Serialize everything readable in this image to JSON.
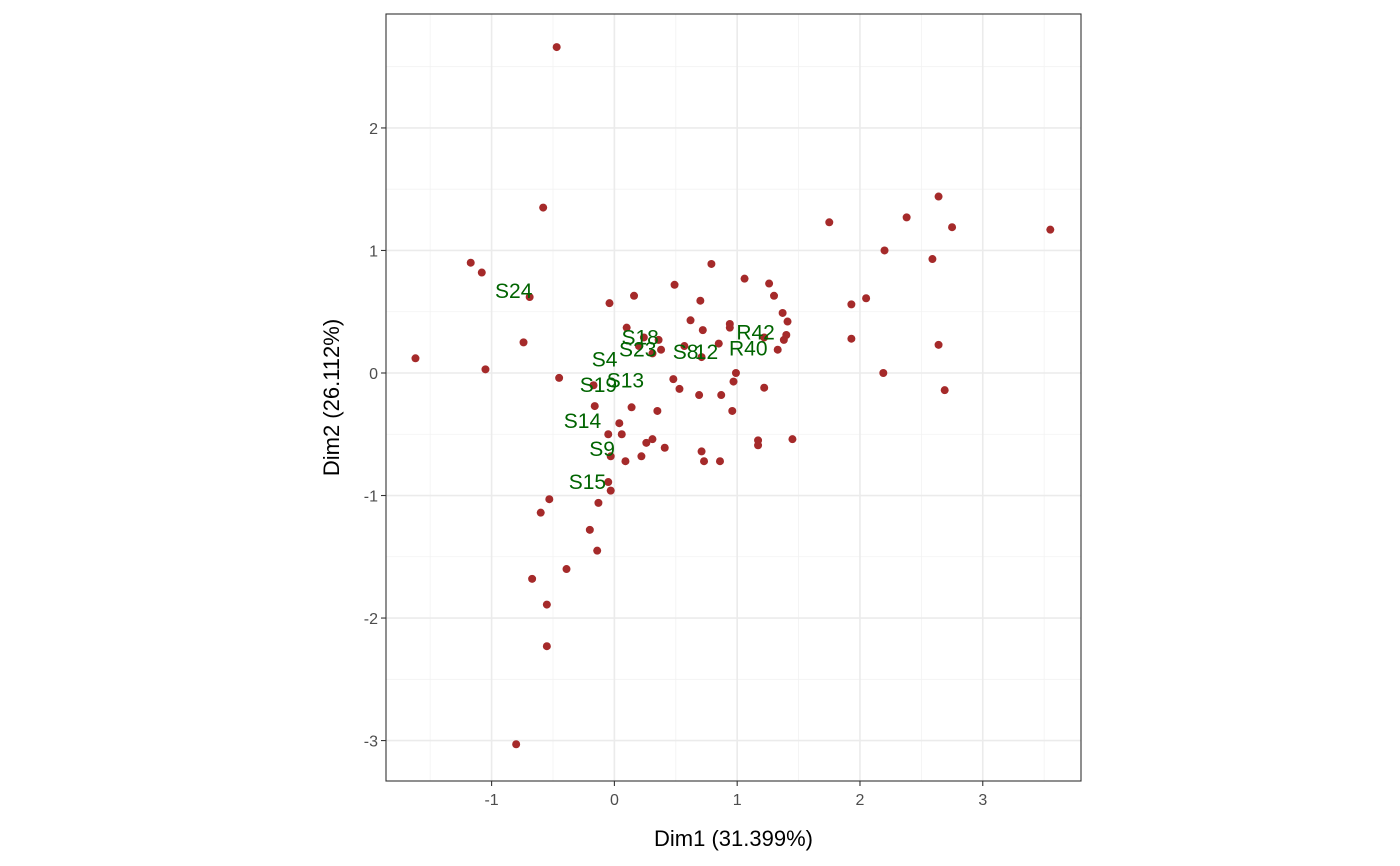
{
  "chart_data": {
    "type": "scatter",
    "title": "",
    "xlabel": "Dim1 (31.399%)",
    "ylabel": "Dim2 (26.112%)",
    "xlim": [
      -1.86,
      3.8
    ],
    "ylim": [
      -3.33,
      2.93
    ],
    "x_ticks": [
      -1,
      0,
      1,
      2,
      3
    ],
    "y_ticks": [
      -3,
      -2,
      -1,
      0,
      1,
      2
    ],
    "grid": true,
    "colors": {
      "point": "#A52A2A",
      "label": "#006400",
      "grid_major": "#EBEBEB",
      "grid_minor": "#F2F2F2",
      "panel_border": "#333333"
    },
    "points": [
      {
        "x": -0.47,
        "y": 2.66
      },
      {
        "x": -0.58,
        "y": 1.35
      },
      {
        "x": -1.17,
        "y": 0.9
      },
      {
        "x": -1.08,
        "y": 0.82
      },
      {
        "x": -0.69,
        "y": 0.62
      },
      {
        "x": -1.62,
        "y": 0.12
      },
      {
        "x": -1.05,
        "y": 0.03
      },
      {
        "x": -0.74,
        "y": 0.25
      },
      {
        "x": -0.45,
        "y": -0.04
      },
      {
        "x": -0.04,
        "y": 0.57
      },
      {
        "x": 0.16,
        "y": 0.63
      },
      {
        "x": 0.49,
        "y": 0.72
      },
      {
        "x": 0.7,
        "y": 0.59
      },
      {
        "x": 0.79,
        "y": 0.89
      },
      {
        "x": 0.62,
        "y": 0.43
      },
      {
        "x": 0.1,
        "y": 0.37
      },
      {
        "x": 0.2,
        "y": 0.22
      },
      {
        "x": 0.24,
        "y": 0.29
      },
      {
        "x": 0.31,
        "y": 0.16
      },
      {
        "x": 0.36,
        "y": 0.27
      },
      {
        "x": 0.38,
        "y": 0.19
      },
      {
        "x": 0.57,
        "y": 0.22
      },
      {
        "x": 0.72,
        "y": 0.35
      },
      {
        "x": 0.71,
        "y": 0.13
      },
      {
        "x": 0.85,
        "y": 0.24
      },
      {
        "x": 0.94,
        "y": 0.37
      },
      {
        "x": 0.94,
        "y": 0.4
      },
      {
        "x": 1.06,
        "y": 0.77
      },
      {
        "x": 1.26,
        "y": 0.73
      },
      {
        "x": 1.3,
        "y": 0.63
      },
      {
        "x": 1.37,
        "y": 0.49
      },
      {
        "x": 1.41,
        "y": 0.42
      },
      {
        "x": 1.4,
        "y": 0.31
      },
      {
        "x": 1.38,
        "y": 0.27
      },
      {
        "x": 1.22,
        "y": 0.29
      },
      {
        "x": 1.33,
        "y": 0.19
      },
      {
        "x": 0.99,
        "y": 0.0
      },
      {
        "x": 0.97,
        "y": -0.07
      },
      {
        "x": 1.22,
        "y": -0.12
      },
      {
        "x": 0.87,
        "y": -0.18
      },
      {
        "x": 0.69,
        "y": -0.18
      },
      {
        "x": 0.53,
        "y": -0.13
      },
      {
        "x": 0.48,
        "y": -0.05
      },
      {
        "x": 0.96,
        "y": -0.31
      },
      {
        "x": 1.17,
        "y": -0.55
      },
      {
        "x": 1.17,
        "y": -0.59
      },
      {
        "x": 1.45,
        "y": -0.54
      },
      {
        "x": 0.35,
        "y": -0.31
      },
      {
        "x": 0.14,
        "y": -0.28
      },
      {
        "x": -0.17,
        "y": -0.1
      },
      {
        "x": -0.16,
        "y": -0.27
      },
      {
        "x": 0.04,
        "y": -0.41
      },
      {
        "x": 0.06,
        "y": -0.5
      },
      {
        "x": -0.05,
        "y": -0.5
      },
      {
        "x": 0.31,
        "y": -0.54
      },
      {
        "x": 0.26,
        "y": -0.57
      },
      {
        "x": 0.41,
        "y": -0.61
      },
      {
        "x": 0.22,
        "y": -0.68
      },
      {
        "x": 0.09,
        "y": -0.72
      },
      {
        "x": -0.03,
        "y": -0.68
      },
      {
        "x": 0.71,
        "y": -0.64
      },
      {
        "x": 0.73,
        "y": -0.72
      },
      {
        "x": 0.86,
        "y": -0.72
      },
      {
        "x": -0.05,
        "y": -0.89
      },
      {
        "x": -0.03,
        "y": -0.96
      },
      {
        "x": -0.13,
        "y": -1.06
      },
      {
        "x": -0.53,
        "y": -1.03
      },
      {
        "x": -0.6,
        "y": -1.14
      },
      {
        "x": -0.2,
        "y": -1.28
      },
      {
        "x": -0.14,
        "y": -1.45
      },
      {
        "x": -0.39,
        "y": -1.6
      },
      {
        "x": -0.67,
        "y": -1.68
      },
      {
        "x": -0.55,
        "y": -1.89
      },
      {
        "x": -0.55,
        "y": -2.23
      },
      {
        "x": -0.8,
        "y": -3.03
      },
      {
        "x": 1.75,
        "y": 1.23
      },
      {
        "x": 2.38,
        "y": 1.27
      },
      {
        "x": 2.64,
        "y": 1.44
      },
      {
        "x": 2.75,
        "y": 1.19
      },
      {
        "x": 3.55,
        "y": 1.17
      },
      {
        "x": 2.2,
        "y": 1.0
      },
      {
        "x": 2.59,
        "y": 0.93
      },
      {
        "x": 2.05,
        "y": 0.61
      },
      {
        "x": 1.93,
        "y": 0.56
      },
      {
        "x": 1.93,
        "y": 0.28
      },
      {
        "x": 2.64,
        "y": 0.23
      },
      {
        "x": 2.19,
        "y": 0.0
      },
      {
        "x": 2.69,
        "y": -0.14
      }
    ],
    "labels": [
      {
        "text": "S24",
        "x": -0.82,
        "y": 0.67
      },
      {
        "text": "S18",
        "x": 0.21,
        "y": 0.29
      },
      {
        "text": "S23",
        "x": 0.19,
        "y": 0.19
      },
      {
        "text": "S8",
        "x": 0.58,
        "y": 0.17
      },
      {
        "text": "12",
        "x": 0.75,
        "y": 0.17
      },
      {
        "text": "R42",
        "x": 1.15,
        "y": 0.33
      },
      {
        "text": "R40",
        "x": 1.09,
        "y": 0.2
      },
      {
        "text": "S4",
        "x": -0.08,
        "y": 0.11
      },
      {
        "text": "S13",
        "x": 0.09,
        "y": -0.06
      },
      {
        "text": "S19",
        "x": -0.13,
        "y": -0.1
      },
      {
        "text": "S14",
        "x": -0.26,
        "y": -0.39
      },
      {
        "text": "S9",
        "x": -0.1,
        "y": -0.62
      },
      {
        "text": "S15",
        "x": -0.22,
        "y": -0.89
      }
    ]
  }
}
